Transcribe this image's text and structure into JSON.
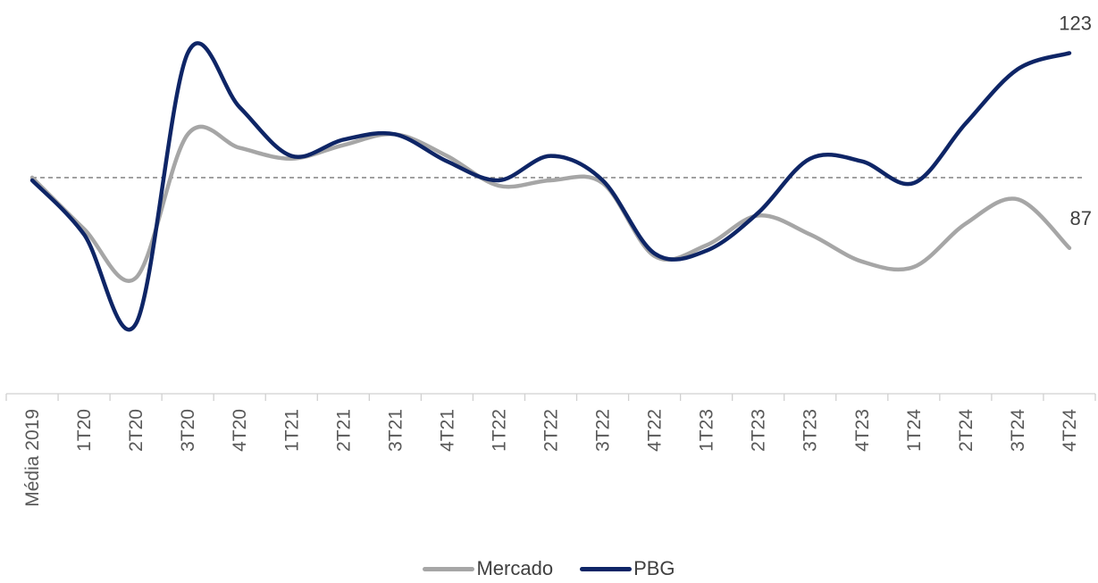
{
  "chart_data": {
    "type": "line",
    "categories": [
      "Média 2019",
      "1T20",
      "2T20",
      "3T20",
      "4T20",
      "1T21",
      "2T21",
      "3T21",
      "4T21",
      "1T22",
      "2T22",
      "3T22",
      "4T22",
      "1T23",
      "2T23",
      "3T23",
      "4T23",
      "1T24",
      "2T24",
      "3T24",
      "4T24"
    ],
    "baseline": 100,
    "ylim": [
      68,
      130
    ],
    "smooth": true,
    "series": [
      {
        "name": "Mercado",
        "color": "#a6a6a6",
        "values": [
          100,
          90.5,
          81.5,
          108,
          105.5,
          103.5,
          106,
          108,
          104,
          98.5,
          99.5,
          99,
          85.5,
          87.5,
          93,
          89.5,
          84.5,
          83.5,
          91.5,
          96,
          87
        ],
        "end_label": "87"
      },
      {
        "name": "PBG",
        "color": "#0e2566",
        "values": [
          99.5,
          89.5,
          73,
          123,
          113,
          104,
          107,
          108,
          103,
          99.5,
          104,
          99.5,
          86,
          86.5,
          93.5,
          103.5,
          103,
          99,
          110,
          120,
          123
        ],
        "end_label": "123"
      }
    ],
    "legend": {
      "position": "bottom-center",
      "items": [
        "Mercado",
        "PBG"
      ]
    }
  }
}
